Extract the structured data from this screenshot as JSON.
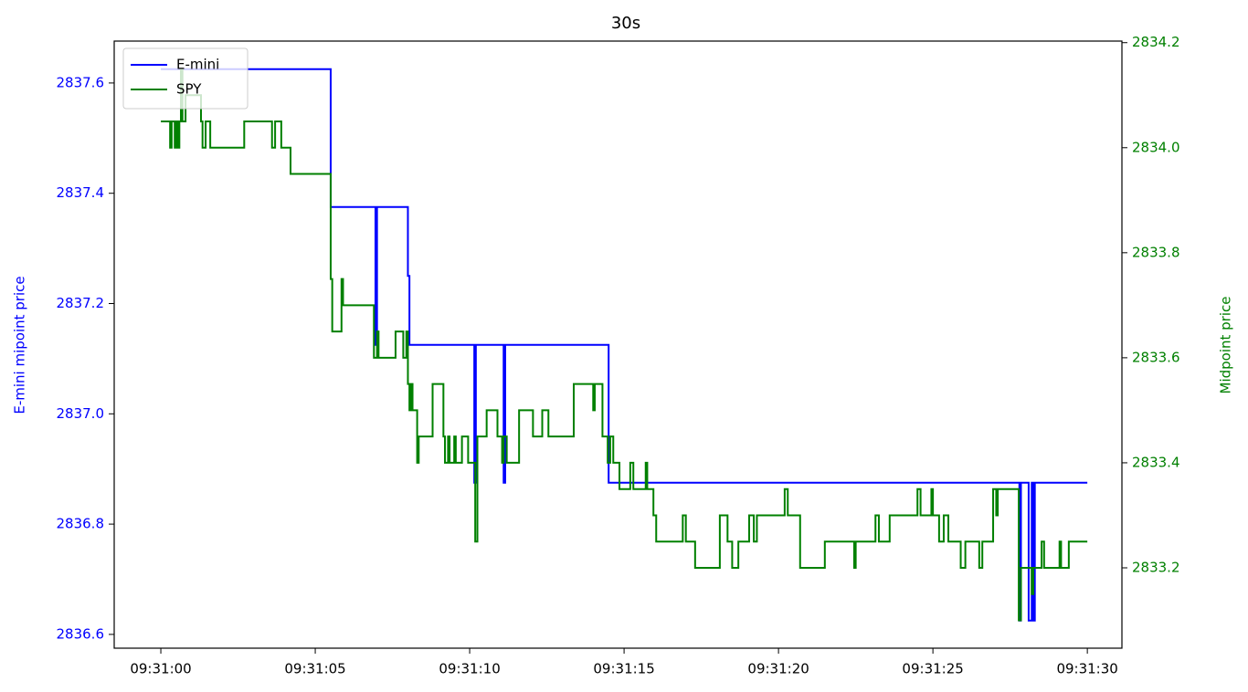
{
  "chart_data": {
    "type": "line",
    "step": "post",
    "title": "30s",
    "ylabel": "E-mini mipoint price",
    "y2label": "Midpoint price",
    "legend": "upper left",
    "xlim": [
      "09:30:58.49",
      "09:31:31.12"
    ],
    "xticks": [
      "09:31:00",
      "09:31:05",
      "09:31:10",
      "09:31:15",
      "09:31:20",
      "09:31:25",
      "09:31:30"
    ],
    "ylim": [
      2836.575,
      2837.676
    ],
    "yticks": [
      2836.6,
      2836.8,
      {
        "value": 2837,
        "label": "2837.0"
      },
      2837.2,
      2837.4,
      2837.6
    ],
    "y2lim": [
      2833.047,
      2834.203
    ],
    "y2ticks": [
      2833.2,
      2833.4,
      2833.6,
      2833.8,
      {
        "value": 2834,
        "label": "2834.0"
      },
      2834.2
    ],
    "series": [
      {
        "name": "E-mini",
        "color": "#0000ff",
        "x": [
          "09:31:00.00",
          "09:31:05.50",
          "09:31:06.95",
          "09:31:07.00",
          "09:31:08.00",
          "09:31:08.05",
          "09:31:10.15",
          "09:31:10.20",
          "09:31:11.10",
          "09:31:11.15",
          "09:31:14.50",
          "09:31:27.80",
          "09:31:27.85",
          "09:31:28.10",
          "09:31:28.20",
          "09:31:28.25",
          "09:31:28.30",
          "09:31:30.00"
        ],
        "values": [
          2837.625,
          2837.375,
          2837.125,
          2837.375,
          2837.25,
          2837.125,
          2836.875,
          2837.125,
          2836.875,
          2837.125,
          2836.875,
          2836.625,
          2836.875,
          2836.625,
          2836.875,
          2836.625,
          2836.875,
          2836.875
        ]
      },
      {
        "name": "SPY",
        "color": "#008000",
        "axis": "y2",
        "x": [
          "09:31:00.00",
          "09:31:00.30",
          "09:31:00.35",
          "09:31:00.45",
          "09:31:00.50",
          "09:31:00.55",
          "09:31:00.60",
          "09:31:00.65",
          "09:31:00.70",
          "09:31:00.80",
          "09:31:01.30",
          "09:31:01.35",
          "09:31:01.45",
          "09:31:01.60",
          "09:31:02.70",
          "09:31:03.60",
          "09:31:03.70",
          "09:31:03.90",
          "09:31:04.20",
          "09:31:05.50",
          "09:31:05.55",
          "09:31:05.85",
          "09:31:05.90",
          "09:31:06.90",
          "09:31:07.00",
          "09:31:07.05",
          "09:31:07.60",
          "09:31:07.85",
          "09:31:07.95",
          "09:31:08.00",
          "09:31:08.05",
          "09:31:08.10",
          "09:31:08.15",
          "09:31:08.30",
          "09:31:08.35",
          "09:31:08.80",
          "09:31:09.15",
          "09:31:09.20",
          "09:31:09.30",
          "09:31:09.35",
          "09:31:09.50",
          "09:31:09.55",
          "09:31:09.75",
          "09:31:09.95",
          "09:31:10.18",
          "09:31:10.25",
          "09:31:10.55",
          "09:31:10.90",
          "09:31:11.05",
          "09:31:11.10",
          "09:31:11.20",
          "09:31:11.60",
          "09:31:12.05",
          "09:31:12.35",
          "09:31:12.55",
          "09:31:13.37",
          "09:31:14.00",
          "09:31:14.05",
          "09:31:14.30",
          "09:31:14.47",
          "09:31:14.55",
          "09:31:14.65",
          "09:31:14.85",
          "09:31:15.20",
          "09:31:15.30",
          "09:31:15.70",
          "09:31:15.75",
          "09:31:15.95",
          "09:31:16.04",
          "09:31:16.90",
          "09:31:17.00",
          "09:31:17.30",
          "09:31:18.10",
          "09:31:18.35",
          "09:31:18.50",
          "09:31:18.70",
          "09:31:19.05",
          "09:31:19.20",
          "09:31:19.30",
          "09:31:20.20",
          "09:31:20.30",
          "09:31:20.70",
          "09:31:21.50",
          "09:31:22.45",
          "09:31:22.50",
          "09:31:23.14",
          "09:31:23.25",
          "09:31:23.60",
          "09:31:24.50",
          "09:31:24.60",
          "09:31:24.95",
          "09:31:25.00",
          "09:31:25.20",
          "09:31:25.35",
          "09:31:25.50",
          "09:31:25.90",
          "09:31:26.05",
          "09:31:26.50",
          "09:31:26.60",
          "09:31:26.95",
          "09:31:27.05",
          "09:31:27.10",
          "09:31:27.78",
          "09:31:27.85",
          "09:31:28.20",
          "09:31:28.25",
          "09:31:28.52",
          "09:31:28.60",
          "09:31:29.10",
          "09:31:29.15",
          "09:31:29.40",
          "09:31:30.00"
        ],
        "values": [
          2834.05,
          2834.0,
          2834.05,
          2834.0,
          2834.05,
          2834.0,
          2834.05,
          2834.15,
          2834.05,
          2834.1,
          2834.05,
          2834.0,
          2834.05,
          2834.0,
          2834.05,
          2834.0,
          2834.05,
          2834.0,
          2833.95,
          2833.75,
          2833.65,
          2833.75,
          2833.7,
          2833.6,
          2833.65,
          2833.6,
          2833.65,
          2833.6,
          2833.65,
          2833.55,
          2833.5,
          2833.55,
          2833.5,
          2833.4,
          2833.45,
          2833.55,
          2833.45,
          2833.4,
          2833.45,
          2833.4,
          2833.45,
          2833.4,
          2833.45,
          2833.4,
          2833.25,
          2833.45,
          2833.5,
          2833.45,
          2833.4,
          2833.45,
          2833.4,
          2833.5,
          2833.45,
          2833.5,
          2833.45,
          2833.55,
          2833.5,
          2833.55,
          2833.45,
          2833.4,
          2833.45,
          2833.4,
          2833.35,
          2833.4,
          2833.35,
          2833.4,
          2833.35,
          2833.3,
          2833.25,
          2833.3,
          2833.25,
          2833.2,
          2833.3,
          2833.25,
          2833.2,
          2833.25,
          2833.3,
          2833.25,
          2833.3,
          2833.35,
          2833.3,
          2833.2,
          2833.25,
          2833.2,
          2833.25,
          2833.3,
          2833.25,
          2833.3,
          2833.35,
          2833.3,
          2833.35,
          2833.3,
          2833.25,
          2833.3,
          2833.25,
          2833.2,
          2833.25,
          2833.2,
          2833.25,
          2833.35,
          2833.3,
          2833.35,
          2833.1,
          2833.2,
          2833.15,
          2833.2,
          2833.25,
          2833.2,
          2833.25,
          2833.2,
          2833.25,
          2833.25
        ]
      }
    ]
  }
}
